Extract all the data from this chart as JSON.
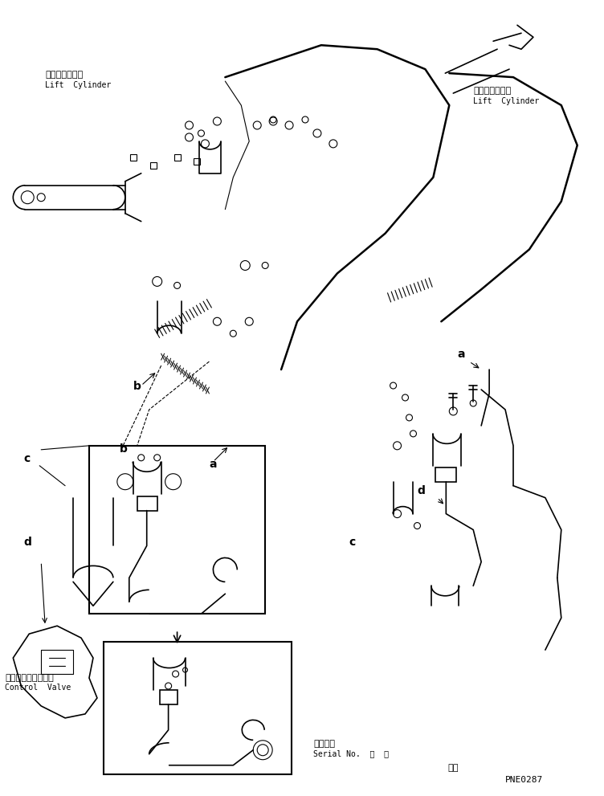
{
  "background_color": "#ffffff",
  "page_width": 7.52,
  "page_height": 9.91,
  "dpi": 100,
  "border_color": "#000000",
  "line_color": "#000000",
  "labels": {
    "lift_cylinder_left_jp": "リフトシリンダ",
    "lift_cylinder_left_en": "Lift  Cylinder",
    "lift_cylinder_right_jp": "リフトシリンダ",
    "lift_cylinder_right_en": "Lift  Cylinder",
    "control_valve_jp": "コントロールバルブ",
    "control_valve_en": "Control  Valve",
    "serial_no_jp": "適用号機",
    "serial_no_en": "Serial No.  、  ～",
    "part_no": "PNE0287",
    "label_a1": "a",
    "label_b1": "b",
    "label_a2": "a",
    "label_b2": "b",
    "label_c1": "c",
    "label_d1": "d",
    "label_c2": "c",
    "label_d2": "d"
  },
  "font_sizes": {
    "japanese": 8,
    "english": 7,
    "label": 10,
    "part_no": 8,
    "serial": 7
  }
}
